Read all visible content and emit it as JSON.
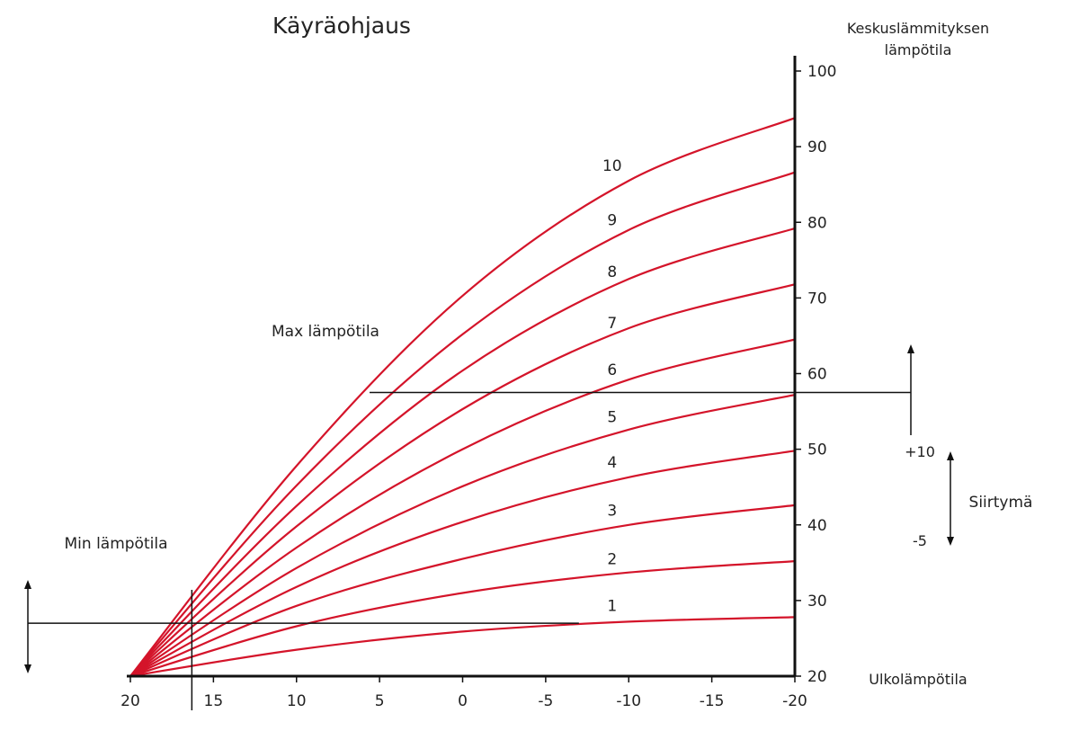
{
  "chart_data": {
    "type": "line",
    "title": "Käyräohjaus",
    "ylabel_line1": "Keskuslämmityksen",
    "ylabel_line2": "lämpötila",
    "xlabel": "Ulkolämpötila",
    "xlim": [
      20,
      -20
    ],
    "ylim": [
      20,
      100
    ],
    "x_ticks": [
      20,
      15,
      10,
      5,
      0,
      -5,
      -10,
      -15,
      -20
    ],
    "x_tick_labels": [
      "20",
      "15",
      "10",
      "5",
      "0",
      "-5",
      "-10",
      "-15",
      "-20"
    ],
    "y_ticks": [
      20,
      30,
      40,
      50,
      60,
      70,
      80,
      90,
      100
    ],
    "y_tick_labels": [
      "20",
      "30",
      "40",
      "50",
      "60",
      "70",
      "80",
      "90",
      "100"
    ],
    "grid": false,
    "line_color": "#d4142a",
    "origin": [
      20,
      20
    ],
    "series": [
      {
        "name": "1",
        "x": [
          20,
          10,
          0,
          -10,
          -20
        ],
        "y": [
          20,
          23.5,
          25.9,
          27.2,
          27.8
        ],
        "label_at": [
          -9,
          28.6
        ]
      },
      {
        "name": "2",
        "x": [
          20,
          10,
          0,
          -10,
          -20
        ],
        "y": [
          20,
          26.6,
          31.0,
          33.7,
          35.2
        ],
        "label_at": [
          -9,
          34.8
        ]
      },
      {
        "name": "3",
        "x": [
          20,
          10,
          0,
          -10,
          -20
        ],
        "y": [
          20,
          29.3,
          35.5,
          40.0,
          42.6
        ],
        "label_at": [
          -9,
          41.2
        ]
      },
      {
        "name": "4",
        "x": [
          20,
          10,
          0,
          -10,
          -20
        ],
        "y": [
          20,
          31.8,
          40.4,
          46.3,
          49.8
        ],
        "label_at": [
          -9,
          47.6
        ]
      },
      {
        "name": "5",
        "x": [
          20,
          10,
          0,
          -10,
          -20
        ],
        "y": [
          20,
          34.3,
          45.1,
          52.6,
          57.2
        ],
        "label_at": [
          -9,
          53.6
        ]
      },
      {
        "name": "6",
        "x": [
          20,
          10,
          0,
          -10,
          -20
        ],
        "y": [
          20,
          37.0,
          50.0,
          59.2,
          64.5
        ],
        "label_at": [
          -9,
          59.8
        ]
      },
      {
        "name": "7",
        "x": [
          20,
          10,
          0,
          -10,
          -20
        ],
        "y": [
          20,
          39.8,
          55.3,
          66.0,
          71.8
        ],
        "label_at": [
          -9,
          66.0
        ]
      },
      {
        "name": "8",
        "x": [
          20,
          10,
          0,
          -10,
          -20
        ],
        "y": [
          20,
          42.5,
          60.4,
          72.5,
          79.2
        ],
        "label_at": [
          -9,
          72.8
        ]
      },
      {
        "name": "9",
        "x": [
          20,
          10,
          0,
          -10,
          -20
        ],
        "y": [
          20,
          45.2,
          65.2,
          79.0,
          86.6
        ],
        "label_at": [
          -9,
          79.6
        ]
      },
      {
        "name": "10",
        "x": [
          20,
          10,
          0,
          -10,
          -20
        ],
        "y": [
          20,
          47.8,
          70.3,
          85.5,
          93.8
        ],
        "label_at": [
          -9,
          86.8
        ]
      }
    ],
    "annotations": {
      "max_label": "Max lämpötila",
      "max_line_y": 57.5,
      "max_line_from_x": 5.6,
      "min_label": "Min lämpötila",
      "min_line_y": 27,
      "min_line_to_x": -7,
      "vertical_marker_x": 16.3,
      "shift_label": "Siirtymä",
      "shift_plus": "+10",
      "shift_minus": "-5"
    }
  }
}
